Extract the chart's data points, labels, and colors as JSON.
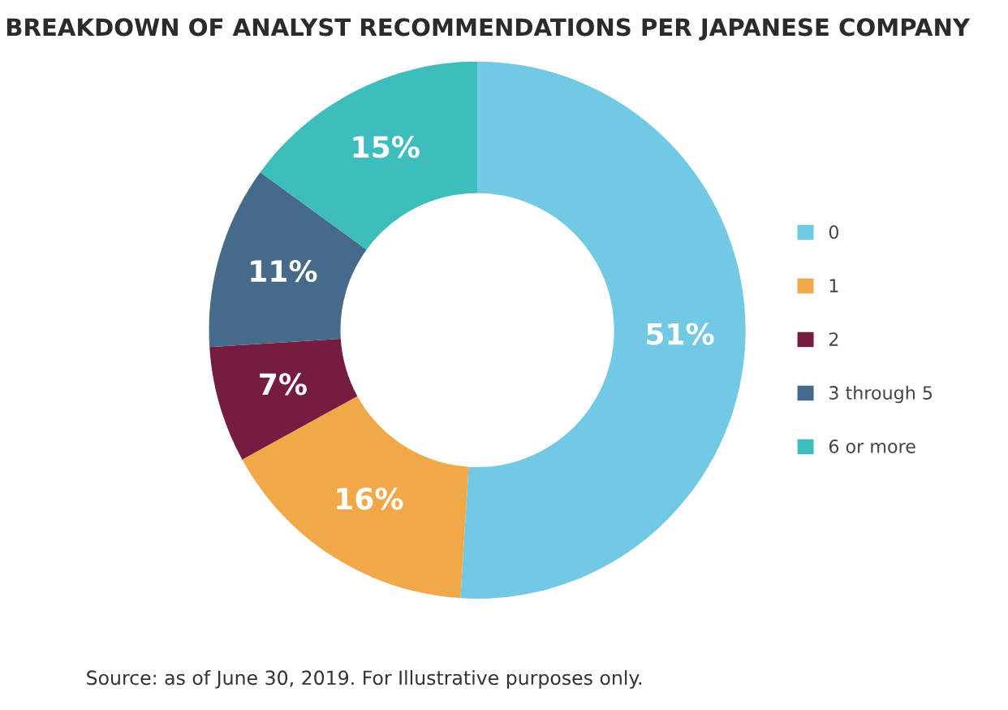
{
  "chart_data": {
    "type": "donut",
    "title": "BREAKDOWN OF ANALYST RECOMMENDATIONS PER JAPANESE COMPANY",
    "categories": [
      "0",
      "1",
      "2",
      "3 through 5",
      "6 or more"
    ],
    "values": [
      51,
      16,
      7,
      11,
      15
    ],
    "value_labels": [
      "51%",
      "16%",
      "7%",
      "11%",
      "15%"
    ],
    "colors": [
      "#72c9e3",
      "#f0a848",
      "#761c40",
      "#456a8a",
      "#3dbdbb"
    ],
    "legend": "right",
    "annotations": [
      "Source: as of June 30, 2019. For Illustrative purposes only."
    ]
  }
}
